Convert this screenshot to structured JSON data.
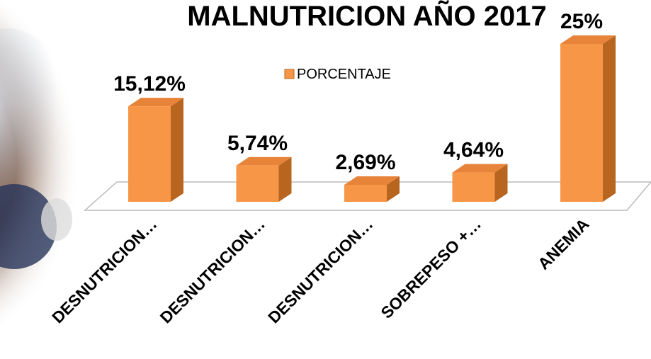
{
  "chart_data": {
    "type": "bar3d",
    "title": "MALNUTRICION AÑO 2017",
    "categories": [
      "DESNUTRICION…",
      "DESNUTRICION…",
      "DESNUTRICION…",
      "SOBREPESO +…",
      "ANEMIA"
    ],
    "series": [
      {
        "name": "PORCENTAJE",
        "color": "#f79646",
        "values": [
          15.12,
          5.74,
          2.69,
          4.64,
          25
        ],
        "value_labels": [
          "15,12%",
          "5,74%",
          "2,69%",
          "4,64%",
          "25%"
        ]
      }
    ],
    "legend": "top"
  }
}
